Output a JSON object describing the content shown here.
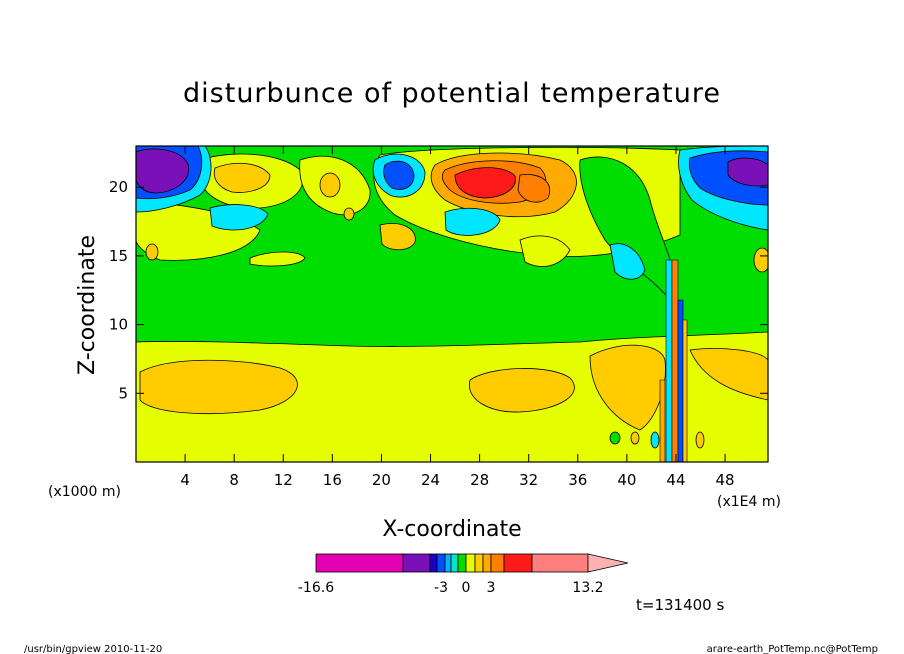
{
  "chart_data": {
    "type": "heatmap",
    "title": "disturbunce of potential temperature",
    "xlabel": "X-coordinate",
    "ylabel": "Z-coordinate",
    "x_unit_left": "(x1000 m)",
    "x_unit_right": "(x1E4 m)",
    "xlim": [
      0,
      51.5
    ],
    "ylim": [
      0,
      23
    ],
    "x_ticks": [
      "4",
      "8",
      "12",
      "16",
      "20",
      "24",
      "28",
      "32",
      "36",
      "40",
      "44",
      "48"
    ],
    "x_tick_values": [
      4,
      8,
      12,
      16,
      20,
      24,
      28,
      32,
      36,
      40,
      44,
      48
    ],
    "y_ticks": [
      "5",
      "10",
      "15",
      "20"
    ],
    "y_tick_values": [
      5,
      10,
      15,
      20
    ],
    "colorbar": {
      "labels": [
        "-16.6",
        "-3",
        "0",
        "3",
        "13.2"
      ],
      "colors": [
        "#e600b4",
        "#7a10b8",
        "#1a00c8",
        "#0050ff",
        "#00b4ff",
        "#00e6c8",
        "#00dd00",
        "#e6ff00",
        "#ffcc00",
        "#ffaa00",
        "#ff8000",
        "#ff1a1a",
        "#ff7f7f",
        "#ffb0b0"
      ]
    },
    "layers": [
      {
        "level": "0 to 1",
        "color": "#00dd00"
      },
      {
        "level": "-1 to 0",
        "color": "#e6ff00"
      },
      {
        "level": "1 to 2",
        "color": "#ffcc00"
      },
      {
        "level": "2 to 3",
        "color": "#ffaa00"
      },
      {
        "level": "3 to 4",
        "color": "#ff8000"
      },
      {
        "level": "> 4",
        "color": "#ff1a1a"
      },
      {
        "level": "-2 to -1",
        "color": "#00e6ff"
      },
      {
        "level": "-3 to -2",
        "color": "#0050ff"
      },
      {
        "level": "< -3",
        "color": "#7a10b8"
      }
    ],
    "time_label": "t=131400 s"
  },
  "footer": {
    "left": "/usr/bin/gpview  2010-11-20",
    "right": "arare-earth_PotTemp.nc@PotTemp"
  }
}
